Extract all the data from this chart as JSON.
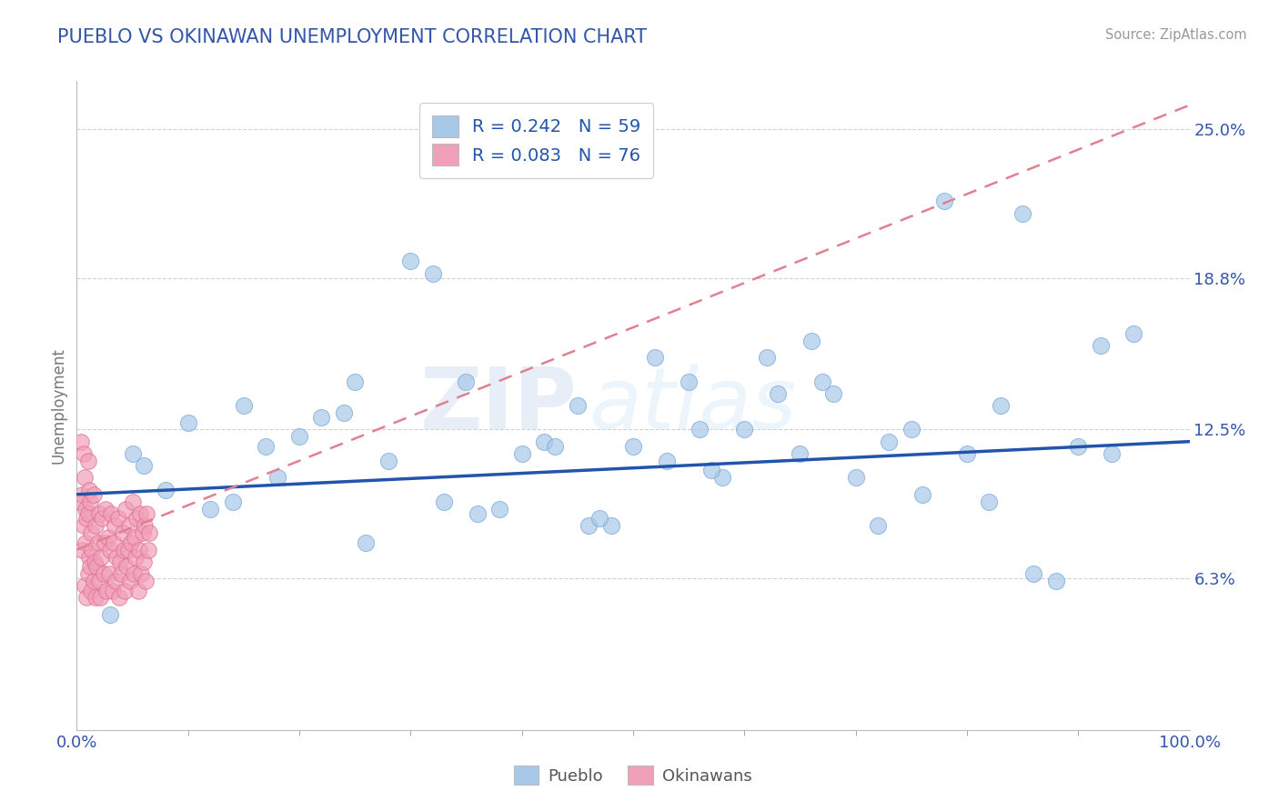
{
  "title": "PUEBLO VS OKINAWAN UNEMPLOYMENT CORRELATION CHART",
  "source_text": "Source: ZipAtlas.com",
  "ylabel": "Unemployment",
  "xlim": [
    0,
    100
  ],
  "ylim": [
    0,
    27
  ],
  "xtick_labels": [
    "0.0%",
    "100.0%"
  ],
  "xtick_positions": [
    0,
    100
  ],
  "xtick_minor_positions": [
    10,
    20,
    30,
    40,
    50,
    60,
    70,
    80,
    90
  ],
  "ytick_positions": [
    6.3,
    12.5,
    18.8,
    25.0
  ],
  "ytick_labels": [
    "6.3%",
    "12.5%",
    "18.8%",
    "25.0%"
  ],
  "pueblo_color": "#a8c8e8",
  "okinawan_color": "#f0a0b8",
  "pueblo_edge_color": "#7aabda",
  "okinawan_edge_color": "#e07090",
  "pueblo_line_color": "#2255aa",
  "okinawan_line_color": "#e08090",
  "pueblo_R": 0.242,
  "pueblo_N": 59,
  "okinawan_R": 0.083,
  "okinawan_N": 76,
  "watermark_zip": "ZIP",
  "watermark_atlas": "atlas",
  "background_color": "#ffffff",
  "grid_color": "#cccccc",
  "title_color": "#3355aa",
  "legend_label_pueblo": "Pueblo",
  "legend_label_okinawan": "Okinawans",
  "pueblo_scatter_x": [
    5,
    10,
    15,
    17,
    20,
    22,
    25,
    28,
    30,
    32,
    35,
    38,
    40,
    42,
    45,
    48,
    50,
    52,
    55,
    58,
    60,
    62,
    65,
    68,
    70,
    72,
    75,
    78,
    80,
    82,
    85,
    88,
    90,
    92,
    95,
    8,
    12,
    18,
    26,
    33,
    43,
    53,
    63,
    73,
    83,
    93,
    6,
    14,
    24,
    36,
    46,
    56,
    66,
    76,
    86,
    3,
    47,
    67,
    57
  ],
  "pueblo_scatter_y": [
    11.5,
    12.8,
    13.5,
    11.8,
    12.2,
    13.0,
    14.5,
    11.2,
    19.5,
    19.0,
    14.5,
    9.2,
    11.5,
    12.0,
    13.5,
    8.5,
    11.8,
    15.5,
    14.5,
    10.5,
    12.5,
    15.5,
    11.5,
    14.0,
    10.5,
    8.5,
    12.5,
    22.0,
    11.5,
    9.5,
    21.5,
    6.2,
    11.8,
    16.0,
    16.5,
    10.0,
    9.2,
    10.5,
    7.8,
    9.5,
    11.8,
    11.2,
    14.0,
    12.0,
    13.5,
    11.5,
    11.0,
    9.5,
    13.2,
    9.0,
    8.5,
    12.5,
    16.2,
    9.8,
    6.5,
    4.8,
    8.8,
    14.5,
    10.8
  ],
  "okinawan_scatter_x": [
    0.3,
    0.4,
    0.5,
    0.5,
    0.6,
    0.6,
    0.7,
    0.7,
    0.8,
    0.8,
    0.9,
    0.9,
    1.0,
    1.0,
    1.0,
    1.1,
    1.1,
    1.2,
    1.2,
    1.3,
    1.3,
    1.4,
    1.5,
    1.5,
    1.6,
    1.7,
    1.7,
    1.8,
    1.9,
    2.0,
    2.0,
    2.1,
    2.2,
    2.3,
    2.4,
    2.5,
    2.6,
    2.7,
    2.8,
    2.9,
    3.0,
    3.1,
    3.2,
    3.3,
    3.4,
    3.5,
    3.6,
    3.7,
    3.8,
    3.9,
    4.0,
    4.1,
    4.2,
    4.3,
    4.4,
    4.5,
    4.6,
    4.7,
    4.8,
    4.9,
    5.0,
    5.1,
    5.2,
    5.3,
    5.4,
    5.5,
    5.6,
    5.7,
    5.8,
    5.9,
    6.0,
    6.1,
    6.2,
    6.3,
    6.4,
    6.5
  ],
  "okinawan_scatter_y": [
    9.5,
    12.0,
    7.5,
    9.8,
    8.5,
    11.5,
    6.0,
    10.5,
    7.8,
    9.2,
    5.5,
    8.8,
    6.5,
    9.0,
    11.2,
    7.2,
    10.0,
    6.8,
    9.5,
    5.8,
    8.2,
    7.5,
    6.2,
    9.8,
    7.0,
    5.5,
    8.5,
    6.8,
    7.8,
    6.2,
    9.0,
    5.5,
    7.2,
    8.8,
    6.5,
    7.8,
    9.2,
    5.8,
    8.0,
    6.5,
    7.5,
    9.0,
    5.8,
    7.8,
    8.5,
    6.2,
    7.2,
    8.8,
    5.5,
    7.0,
    6.5,
    8.2,
    7.5,
    5.8,
    9.2,
    6.8,
    7.5,
    8.5,
    6.2,
    7.8,
    9.5,
    6.5,
    8.0,
    7.2,
    8.8,
    5.8,
    7.5,
    9.0,
    6.5,
    8.2,
    7.0,
    8.5,
    6.2,
    9.0,
    7.5,
    8.2
  ],
  "pueblo_line_x0": 0,
  "pueblo_line_x1": 100,
  "pueblo_line_y0": 9.8,
  "pueblo_line_y1": 12.0,
  "okinawan_line_x0": 0,
  "okinawan_line_x1": 100,
  "okinawan_line_y0": 7.5,
  "okinawan_line_y1": 26.0
}
